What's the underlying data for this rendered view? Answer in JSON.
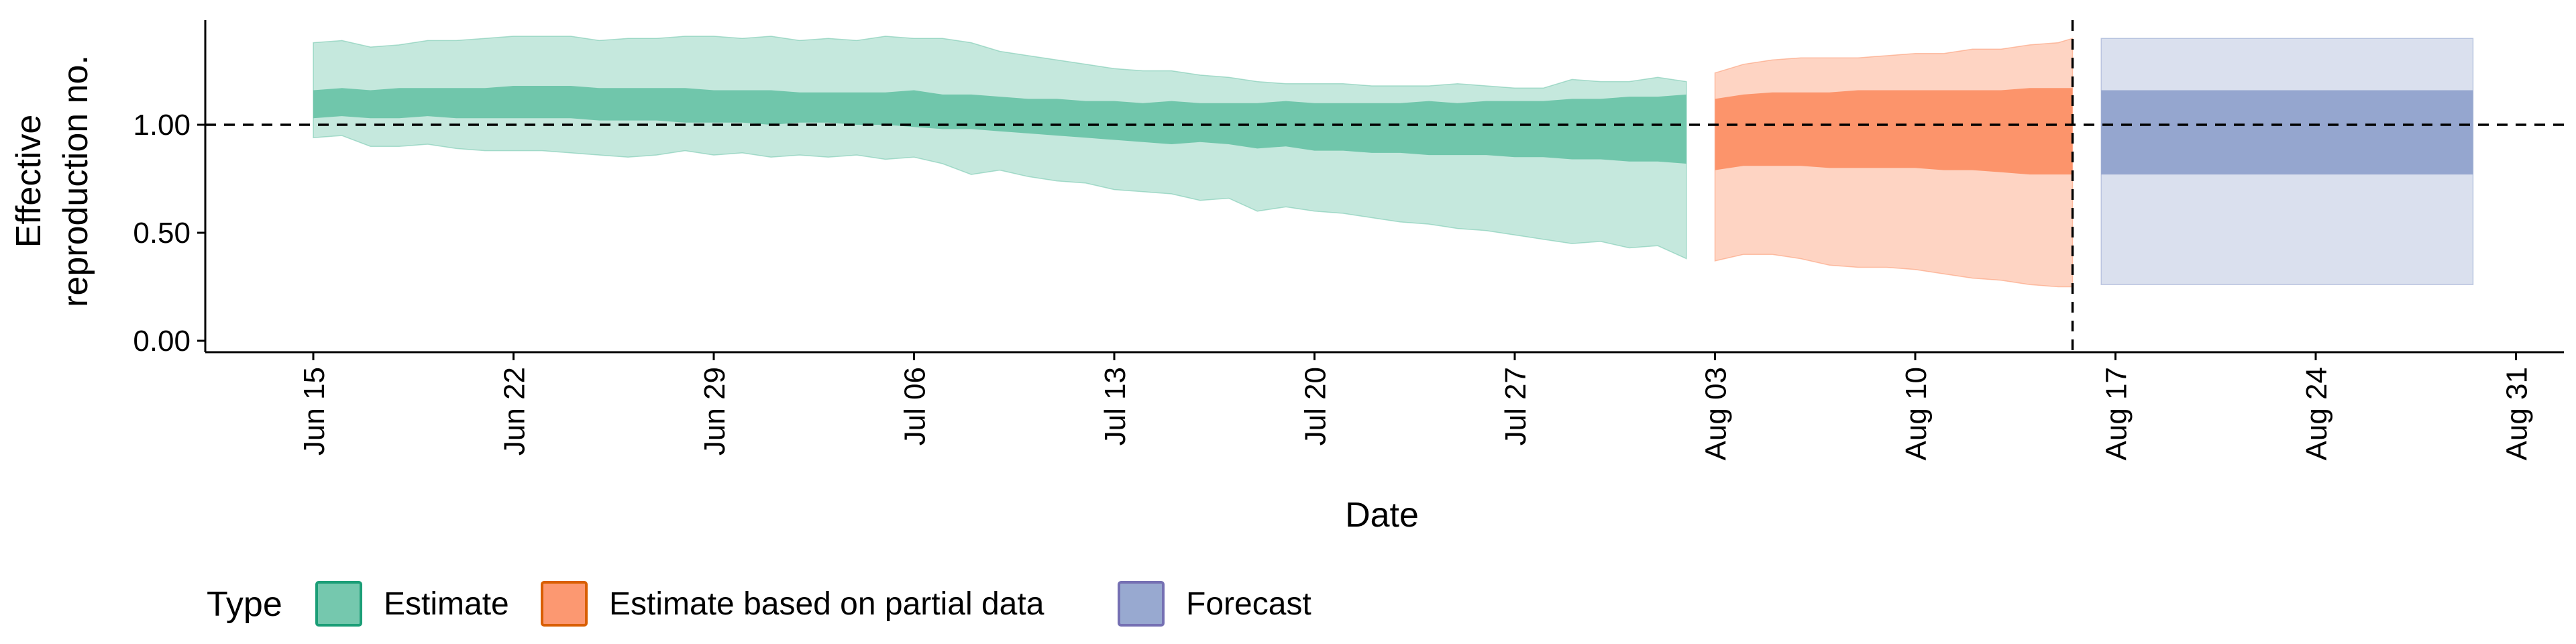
{
  "chart_data": {
    "type": "area",
    "xlabel": "Date",
    "ylabel": [
      "Effective",
      "reproduction no."
    ],
    "ylim": [
      0,
      1.5
    ],
    "y_ticks": [
      {
        "value": 0.0,
        "label": "0.00"
      },
      {
        "value": 0.5,
        "label": "0.50"
      },
      {
        "value": 1.0,
        "label": "1.00"
      }
    ],
    "x_ticks": [
      {
        "day": 0,
        "label": "Jun 15"
      },
      {
        "day": 7,
        "label": "Jun 22"
      },
      {
        "day": 14,
        "label": "Jun 29"
      },
      {
        "day": 21,
        "label": "Jul 06"
      },
      {
        "day": 28,
        "label": "Jul 13"
      },
      {
        "day": 35,
        "label": "Jul 20"
      },
      {
        "day": 42,
        "label": "Jul 27"
      },
      {
        "day": 49,
        "label": "Aug 03"
      },
      {
        "day": 56,
        "label": "Aug 10"
      },
      {
        "day": 63,
        "label": "Aug 17"
      },
      {
        "day": 70,
        "label": "Aug 24"
      },
      {
        "day": 77,
        "label": "Aug 31"
      }
    ],
    "x_range_days": [
      -3.7,
      79
    ],
    "reference_line_y": 1.0,
    "forecast_start_day": 61.5,
    "legend": {
      "title": "Type",
      "position": "bottom",
      "items": [
        {
          "label": "Estimate",
          "fill": "#66c2a5",
          "stroke": "#1b9e77"
        },
        {
          "label": "Estimate based on partial data",
          "fill": "#fc8d62",
          "stroke": "#d95f02"
        },
        {
          "label": "Forecast",
          "fill": "#8da0cb",
          "stroke": "#7570b3"
        }
      ]
    },
    "series": [
      {
        "name": "Estimate",
        "color": "#1b9e77",
        "x": [
          0,
          1,
          2,
          3,
          4,
          5,
          6,
          7,
          8,
          9,
          10,
          11,
          12,
          13,
          14,
          15,
          16,
          17,
          18,
          19,
          20,
          21,
          22,
          23,
          24,
          25,
          26,
          27,
          28,
          29,
          30,
          31,
          32,
          33,
          34,
          35,
          36,
          37,
          38,
          39,
          40,
          41,
          42,
          43,
          44,
          45,
          46,
          47,
          48
        ],
        "outer_upper": [
          1.38,
          1.39,
          1.36,
          1.37,
          1.39,
          1.39,
          1.4,
          1.41,
          1.41,
          1.41,
          1.39,
          1.4,
          1.4,
          1.41,
          1.41,
          1.4,
          1.41,
          1.39,
          1.4,
          1.39,
          1.41,
          1.4,
          1.4,
          1.38,
          1.34,
          1.32,
          1.3,
          1.28,
          1.26,
          1.25,
          1.25,
          1.23,
          1.22,
          1.2,
          1.19,
          1.19,
          1.19,
          1.18,
          1.18,
          1.18,
          1.19,
          1.18,
          1.17,
          1.17,
          1.21,
          1.2,
          1.2,
          1.22,
          1.2
        ],
        "outer_lower": [
          0.94,
          0.95,
          0.9,
          0.9,
          0.91,
          0.89,
          0.88,
          0.88,
          0.88,
          0.87,
          0.86,
          0.85,
          0.86,
          0.88,
          0.86,
          0.87,
          0.85,
          0.86,
          0.85,
          0.86,
          0.84,
          0.85,
          0.82,
          0.77,
          0.79,
          0.76,
          0.74,
          0.73,
          0.7,
          0.69,
          0.68,
          0.65,
          0.66,
          0.6,
          0.62,
          0.6,
          0.59,
          0.57,
          0.55,
          0.54,
          0.52,
          0.51,
          0.49,
          0.47,
          0.45,
          0.46,
          0.43,
          0.44,
          0.38
        ],
        "inner_upper": [
          1.16,
          1.17,
          1.16,
          1.17,
          1.17,
          1.17,
          1.17,
          1.18,
          1.18,
          1.18,
          1.17,
          1.17,
          1.17,
          1.17,
          1.16,
          1.16,
          1.16,
          1.15,
          1.15,
          1.15,
          1.15,
          1.16,
          1.14,
          1.14,
          1.13,
          1.12,
          1.12,
          1.11,
          1.11,
          1.1,
          1.11,
          1.1,
          1.1,
          1.1,
          1.11,
          1.1,
          1.1,
          1.1,
          1.1,
          1.11,
          1.1,
          1.11,
          1.11,
          1.11,
          1.12,
          1.12,
          1.13,
          1.13,
          1.14
        ],
        "inner_lower": [
          1.03,
          1.04,
          1.03,
          1.03,
          1.04,
          1.03,
          1.03,
          1.03,
          1.03,
          1.03,
          1.02,
          1.02,
          1.02,
          1.01,
          1.01,
          1.01,
          1.0,
          1.01,
          1.01,
          1.0,
          1.0,
          0.99,
          0.98,
          0.98,
          0.97,
          0.96,
          0.95,
          0.94,
          0.93,
          0.92,
          0.91,
          0.92,
          0.91,
          0.89,
          0.9,
          0.88,
          0.88,
          0.87,
          0.87,
          0.86,
          0.86,
          0.86,
          0.85,
          0.85,
          0.84,
          0.84,
          0.83,
          0.83,
          0.82
        ]
      },
      {
        "name": "Estimate based on partial data",
        "color": "#d95f02",
        "x": [
          49,
          50,
          51,
          52,
          53,
          54,
          55,
          56,
          57,
          58,
          59,
          60,
          61,
          61.5
        ],
        "outer_upper": [
          1.24,
          1.28,
          1.3,
          1.31,
          1.31,
          1.31,
          1.32,
          1.33,
          1.33,
          1.35,
          1.35,
          1.37,
          1.38,
          1.4
        ],
        "outer_lower": [
          0.37,
          0.4,
          0.4,
          0.38,
          0.35,
          0.34,
          0.34,
          0.33,
          0.31,
          0.29,
          0.28,
          0.26,
          0.25,
          0.25
        ],
        "inner_upper": [
          1.12,
          1.14,
          1.15,
          1.15,
          1.15,
          1.16,
          1.16,
          1.16,
          1.16,
          1.16,
          1.16,
          1.17,
          1.17,
          1.17
        ],
        "inner_lower": [
          0.79,
          0.81,
          0.81,
          0.81,
          0.8,
          0.8,
          0.8,
          0.8,
          0.79,
          0.79,
          0.78,
          0.77,
          0.77,
          0.77
        ]
      },
      {
        "name": "Forecast",
        "color": "#7570b3",
        "x": [
          62.5,
          75.5
        ],
        "outer_upper": [
          1.4,
          1.4
        ],
        "outer_lower": [
          0.26,
          0.26
        ],
        "inner_upper": [
          1.16,
          1.16
        ],
        "inner_lower": [
          0.77,
          0.77
        ]
      }
    ]
  }
}
